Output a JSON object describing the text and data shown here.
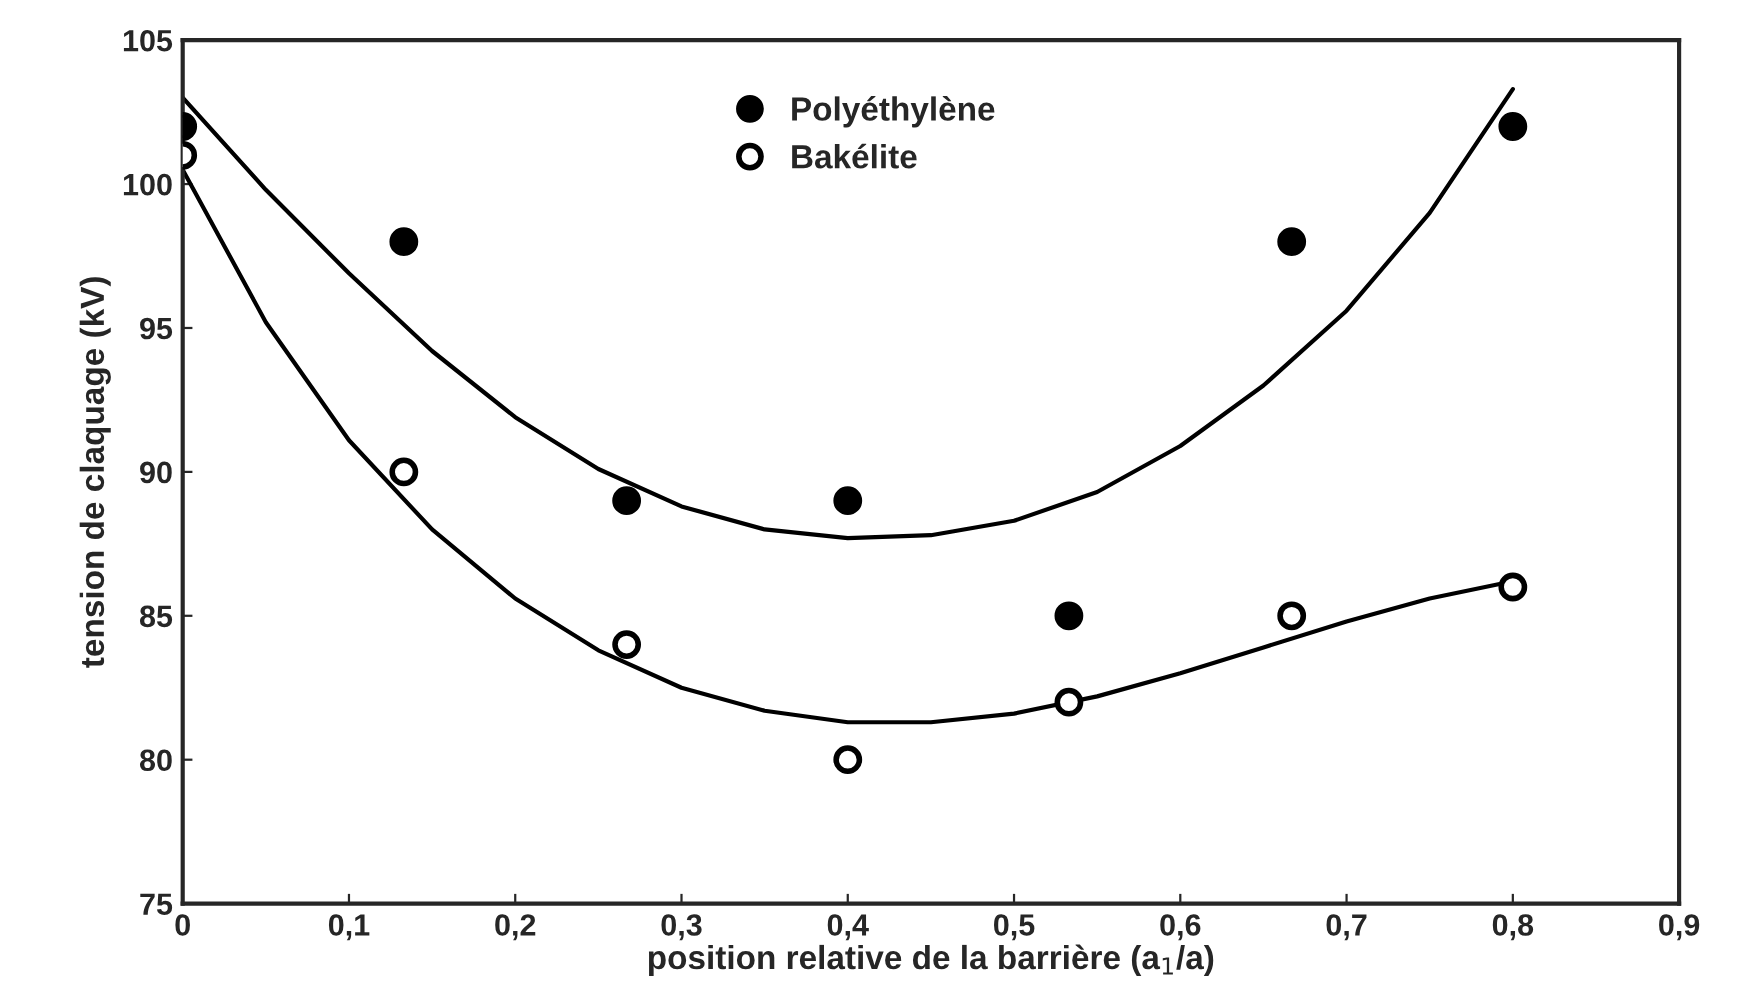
{
  "chart_data": {
    "type": "scatter",
    "xlabel": "position relative de la barrière (a$_{1}$/a)",
    "ylabel": "tension de claquage (kV)",
    "series": [
      {
        "name": "Polyéthylène",
        "color": "#000000",
        "marker": "circle",
        "x": [
          0,
          0.133,
          0.267,
          0.4,
          0.533,
          0.667,
          0.8
        ],
        "values": [
          102,
          98,
          89,
          89,
          85,
          98,
          102
        ]
      },
      {
        "name": "Bakélite",
        "color": "#000000",
        "marker": "circle",
        "x": [
          0,
          0.133,
          0.267,
          0.4,
          0.533,
          0.667,
          0.8
        ],
        "values": [
          101,
          90,
          84,
          80,
          82,
          85,
          86
        ]
      },
      {
        "type": "line",
        "color": "#000000",
        "marker": "none",
        "x": [
          0,
          0.05,
          0.1,
          0.15,
          0.2,
          0.25,
          0.3,
          0.35,
          0.4,
          0.45,
          0.5,
          0.55,
          0.6,
          0.65,
          0.7,
          0.75,
          0.8
        ],
        "values": [
          103,
          99.8,
          96.9,
          94.2,
          91.9,
          90.1,
          88.8,
          88.0,
          87.7,
          87.8,
          88.3,
          89.3,
          90.9,
          93.0,
          95.6,
          99.0,
          103.3
        ]
      },
      {
        "type": "line",
        "color": "#000000",
        "marker": "none",
        "x": [
          0,
          0.05,
          0.1,
          0.15,
          0.2,
          0.25,
          0.3,
          0.35,
          0.4,
          0.45,
          0.5,
          0.55,
          0.6,
          0.65,
          0.7,
          0.75,
          0.8
        ],
        "values": [
          100.5,
          95.2,
          91.1,
          88.0,
          85.6,
          83.8,
          82.5,
          81.7,
          81.3,
          81.3,
          81.6,
          82.2,
          83.0,
          83.9,
          84.8,
          85.6,
          86.2
        ]
      }
    ],
    "xlim": [
      0,
      0.9
    ],
    "xticks": [
      0,
      {
        "value": 0.1,
        "label": "0,1"
      },
      {
        "value": 0.2,
        "label": "0,2"
      },
      {
        "value": 0.3,
        "label": "0,3"
      },
      {
        "value": 0.4,
        "label": "0,4"
      },
      {
        "value": 0.5,
        "label": "0,5"
      },
      {
        "value": 0.6,
        "label": "0,6"
      },
      {
        "value": 0.7,
        "label": "0,7"
      },
      {
        "value": 0.8,
        "label": "0,8"
      },
      {
        "value": 0.9,
        "label": "0,9"
      }
    ],
    "ylim": [
      75,
      105
    ],
    "yticks": [
      75,
      80,
      85,
      90,
      95,
      100,
      105
    ],
    "grid": false,
    "legend": "top"
  }
}
